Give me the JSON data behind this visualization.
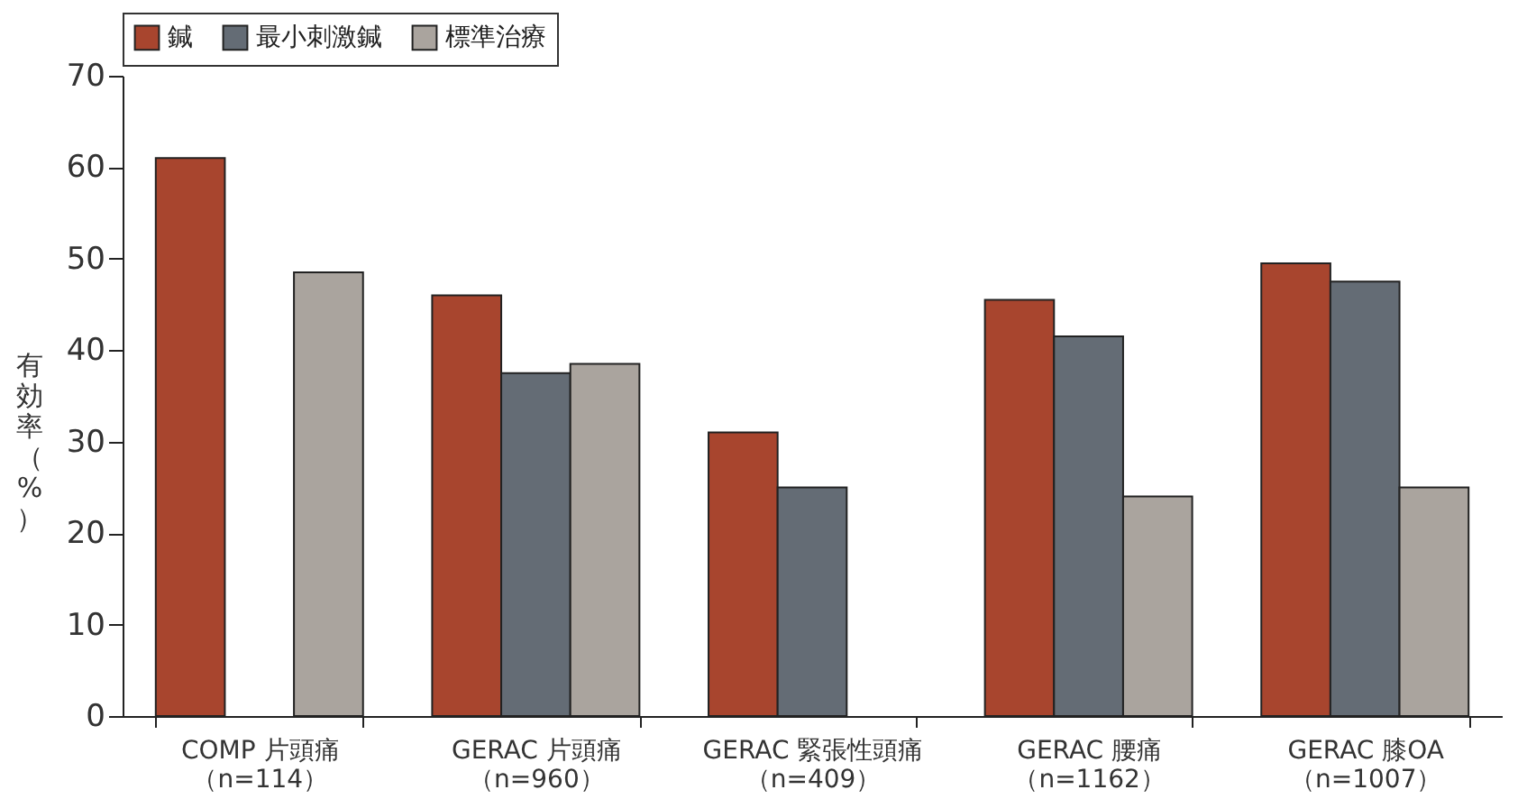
{
  "chart_data": {
    "type": "bar",
    "ylabel": "有効率（%）",
    "categories": [
      "COMP 片頭痛（n=114）",
      "GERAC 片頭痛（n=960）",
      "GERAC 緊張性頭痛（n=409）",
      "GERAC 腰痛（n=1162）",
      "GERAC 膝OA（n=1007）"
    ],
    "series": [
      {
        "name": "鍼",
        "color": "#a8452e",
        "values": [
          61,
          46,
          31,
          45.5,
          49.5
        ]
      },
      {
        "name": "最小刺激鍼",
        "color": "#646c75",
        "values": [
          null,
          37.5,
          25,
          41.5,
          47.5
        ]
      },
      {
        "name": "標準治療",
        "color": "#aaa49e",
        "values": [
          48.5,
          38.5,
          null,
          24,
          25
        ]
      }
    ],
    "ylim": [
      0,
      70
    ],
    "yticks": [
      0,
      10,
      20,
      30,
      40,
      50,
      60,
      70
    ],
    "grid": false,
    "legend": "top"
  }
}
